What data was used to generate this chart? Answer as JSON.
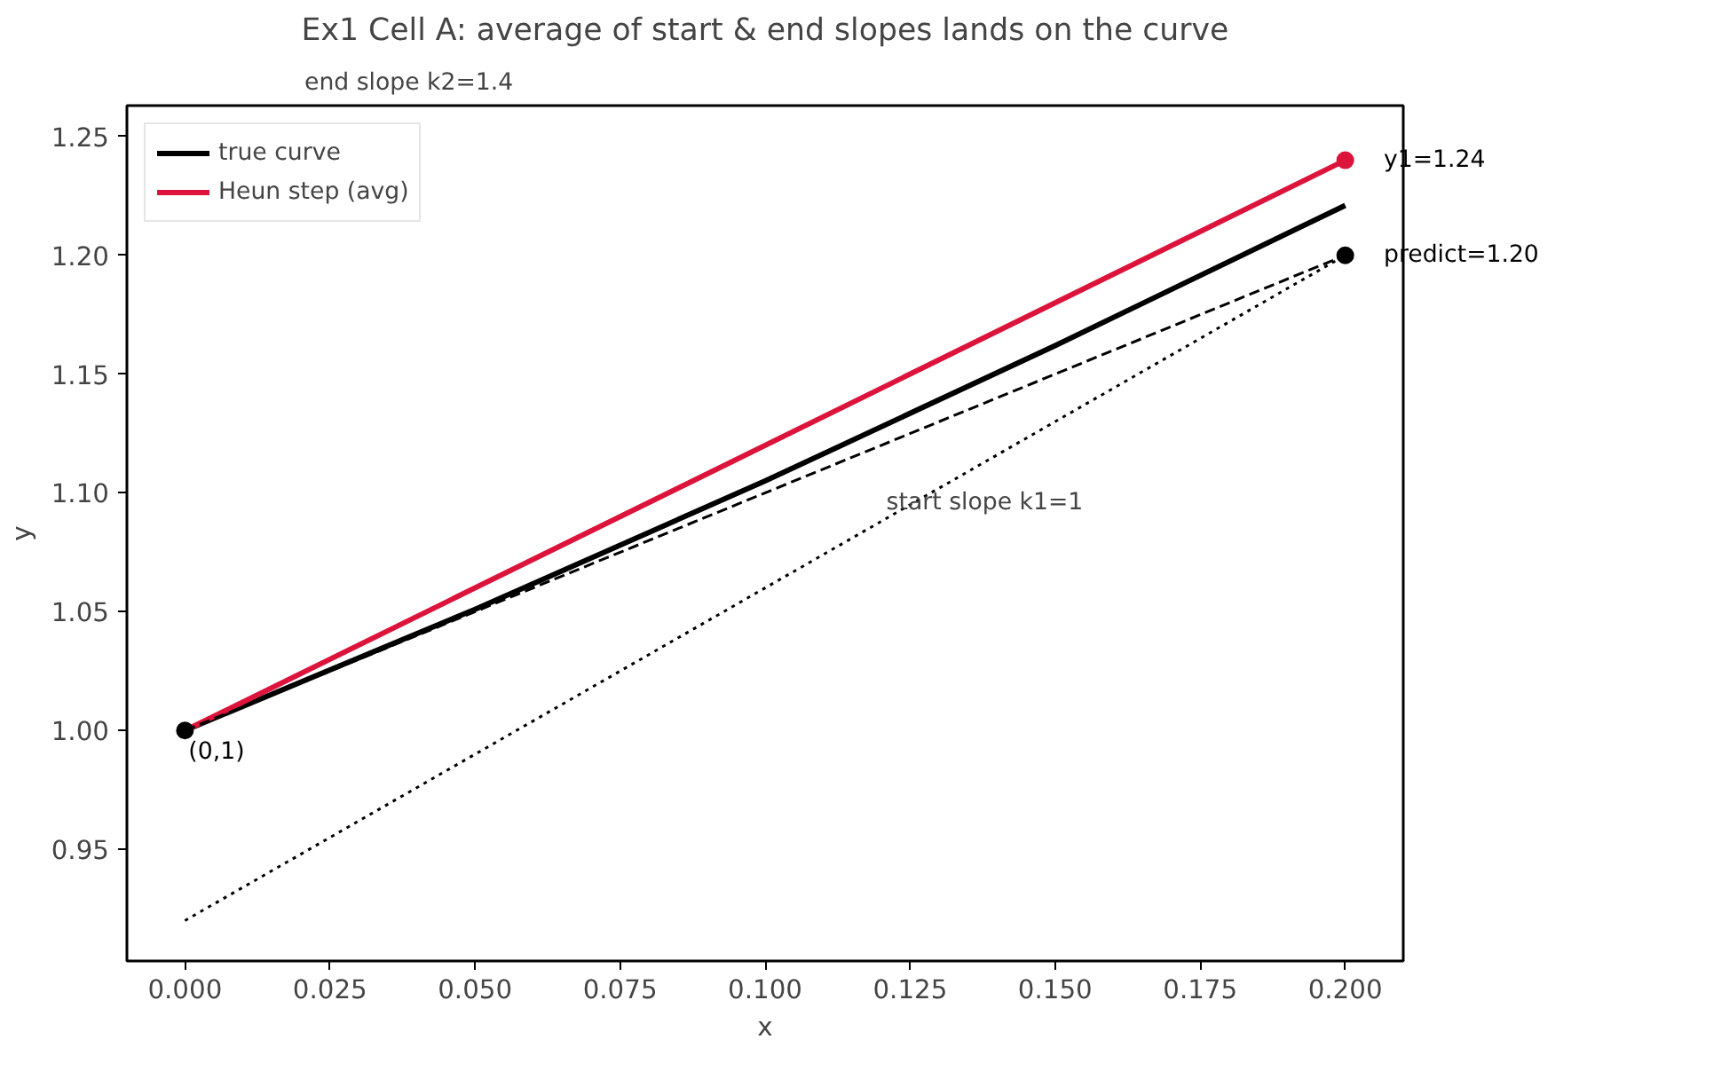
{
  "chart_data": {
    "type": "line",
    "title": "Ex1 Cell A: average of start & end slopes lands on the curve",
    "xlabel": "x",
    "ylabel": "y",
    "xlim": [
      -0.01,
      0.21
    ],
    "ylim": [
      0.903,
      1.263
    ],
    "xticks": [
      {
        "value": 0,
        "label": "0.000"
      },
      {
        "value": 0.025,
        "label": "0.025"
      },
      {
        "value": 0.05,
        "label": "0.050"
      },
      {
        "value": 0.075,
        "label": "0.075"
      },
      {
        "value": 0.1,
        "label": "0.100"
      },
      {
        "value": 0.125,
        "label": "0.125"
      },
      {
        "value": 0.15,
        "label": "0.150"
      },
      {
        "value": 0.175,
        "label": "0.175"
      },
      {
        "value": 0.2,
        "label": "0.200"
      }
    ],
    "yticks": [
      0.95,
      {
        "value": 1.0,
        "label": "1.00"
      },
      1.05,
      {
        "value": 1.1,
        "label": "1.10"
      },
      1.15,
      {
        "value": 1.2,
        "label": "1.20"
      },
      1.25
    ],
    "grid": false,
    "legend": "top left",
    "series": [
      {
        "name": "true curve",
        "color": "#000000",
        "line_style": "solid",
        "x": [
          0,
          0.05,
          0.1,
          0.15,
          0.2
        ],
        "values": [
          1.0,
          1.051,
          1.105,
          1.162,
          1.221
        ]
      },
      {
        "name": "Heun step (avg)",
        "color": "#dc143c",
        "line_style": "solid",
        "x": [
          0,
          0.2
        ],
        "values": [
          1.0,
          1.24
        ]
      },
      {
        "color": "#000000",
        "line_style": "dashed",
        "x": [
          0,
          0.2
        ],
        "values": [
          1.0,
          1.2
        ]
      },
      {
        "color": "#000000",
        "line_style": "dotted",
        "x": [
          0,
          0.2
        ],
        "values": [
          0.92,
          1.2
        ]
      },
      {
        "type": "scatter",
        "marker": "circle",
        "color": "#000000",
        "x": [
          0,
          0.2
        ],
        "values": [
          1.0,
          1.2
        ],
        "value_labels": [
          null,
          "predict=1.20"
        ]
      },
      {
        "type": "scatter",
        "marker": "circle",
        "color": "#dc143c",
        "x": [
          0.2
        ],
        "values": [
          1.24
        ],
        "value_labels": [
          "y1=1.24"
        ]
      }
    ],
    "annotations": [
      "end slope k2=1.4",
      "start slope k1=1",
      {
        "text": "(0,1)",
        "x": 0,
        "y": 1.0
      }
    ]
  }
}
